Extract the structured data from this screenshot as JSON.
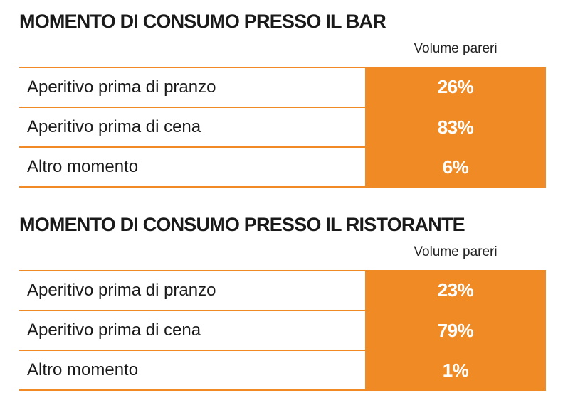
{
  "bar": {
    "title": "MOMENTO DI CONSUMO PRESSO IL BAR",
    "column_header": "Volume pareri",
    "rows": [
      {
        "label": "Aperitivo prima di pranzo",
        "value": "26%"
      },
      {
        "label": "Aperitivo prima di cena",
        "value": "83%"
      },
      {
        "label": "Altro momento",
        "value": "6%"
      }
    ]
  },
  "ristorante": {
    "title": "MOMENTO DI CONSUMO PRESSO IL RISTORANTE",
    "column_header": "Volume pareri",
    "rows": [
      {
        "label": "Aperitivo prima di pranzo",
        "value": "23%"
      },
      {
        "label": "Aperitivo prima di cena",
        "value": "79%"
      },
      {
        "label": "Altro momento",
        "value": "1%"
      }
    ]
  },
  "colors": {
    "accent": "#f08a24",
    "text": "#1a1a1a",
    "value_text": "#ffffff"
  }
}
